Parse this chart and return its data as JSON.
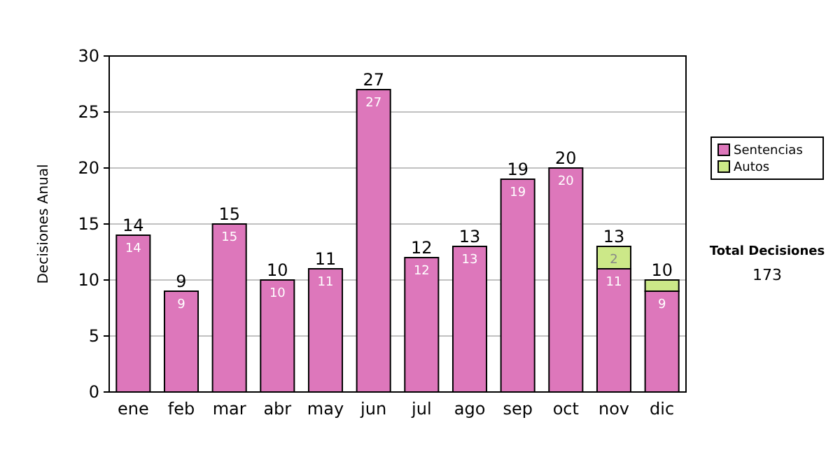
{
  "chart_data": {
    "type": "bar",
    "stacked": true,
    "ylabel": "Decisiones Anual",
    "categories": [
      "ene",
      "feb",
      "mar",
      "abr",
      "may",
      "jun",
      "jul",
      "ago",
      "sep",
      "oct",
      "nov",
      "dic"
    ],
    "series": [
      {
        "name": "Sentencias",
        "color": "#dd77bb",
        "values": [
          14,
          9,
          15,
          10,
          11,
          27,
          12,
          13,
          19,
          20,
          11,
          9
        ],
        "value_labels": [
          "14",
          "9",
          "15",
          "10",
          "11",
          "27",
          "12",
          "13",
          "19",
          "20",
          "11",
          "9"
        ]
      },
      {
        "name": "Autos",
        "color": "#cce888",
        "values": [
          0,
          0,
          0,
          0,
          0,
          0,
          0,
          0,
          0,
          0,
          2,
          1
        ],
        "value_labels": [
          null,
          null,
          null,
          null,
          null,
          null,
          null,
          null,
          null,
          null,
          "2",
          null
        ]
      }
    ],
    "totals": [
      "14",
      "9",
      "15",
      "10",
      "11",
      "27",
      "12",
      "13",
      "19",
      "20",
      "13",
      "10"
    ],
    "ylim": [
      0,
      30
    ],
    "yticks": [
      0,
      5,
      10,
      15,
      20,
      25,
      30
    ],
    "grid": "y",
    "legend": "right",
    "annotations": [
      "Total Decisiones",
      "173"
    ]
  }
}
